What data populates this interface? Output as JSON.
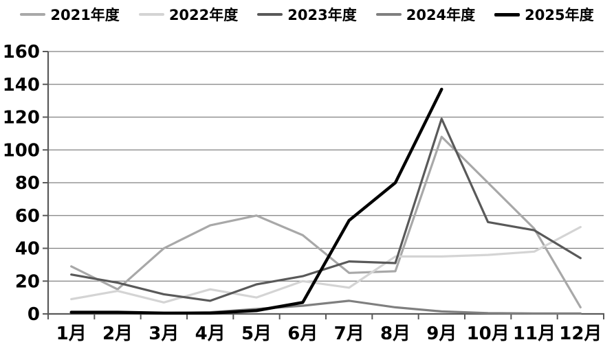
{
  "chart_data": {
    "type": "line",
    "title": "",
    "xlabel": "",
    "ylabel": "",
    "categories": [
      "1月",
      "2月",
      "3月",
      "4月",
      "5月",
      "6月",
      "7月",
      "8月",
      "9月",
      "10月",
      "11月",
      "12月"
    ],
    "series": [
      {
        "name": "2021年度",
        "color": "#a8a8a8",
        "width": 3.2,
        "values": [
          29,
          15,
          40,
          54,
          60,
          48,
          25,
          26,
          108,
          80,
          52,
          4
        ]
      },
      {
        "name": "2022年度",
        "color": "#d4d4d4",
        "width": 3.2,
        "values": [
          9,
          14,
          7,
          15,
          10,
          20,
          16,
          35,
          35,
          36,
          38,
          53
        ]
      },
      {
        "name": "2023年度",
        "color": "#595959",
        "width": 3.2,
        "values": [
          24,
          19,
          12,
          8,
          18,
          23,
          32,
          31,
          119,
          56,
          51,
          34
        ]
      },
      {
        "name": "2024年度",
        "color": "#7f7f7f",
        "width": 3.2,
        "values": [
          1,
          1,
          0.5,
          1,
          3,
          5,
          8,
          4,
          1.5,
          0.5,
          0.3,
          0.3
        ]
      },
      {
        "name": "2025年度",
        "color": "#000000",
        "width": 4.4,
        "values": [
          1,
          1,
          0.5,
          0.5,
          2,
          7,
          57,
          80,
          137,
          null,
          null,
          null
        ]
      }
    ],
    "ylim": [
      0,
      160
    ],
    "ytick_step": 20,
    "yticks": [
      0,
      20,
      40,
      60,
      80,
      100,
      120,
      140,
      160
    ],
    "grid": true,
    "legend_position": "top",
    "axis_color": "#595959",
    "grid_color": "#808080",
    "tick_label_color": "#000000"
  }
}
